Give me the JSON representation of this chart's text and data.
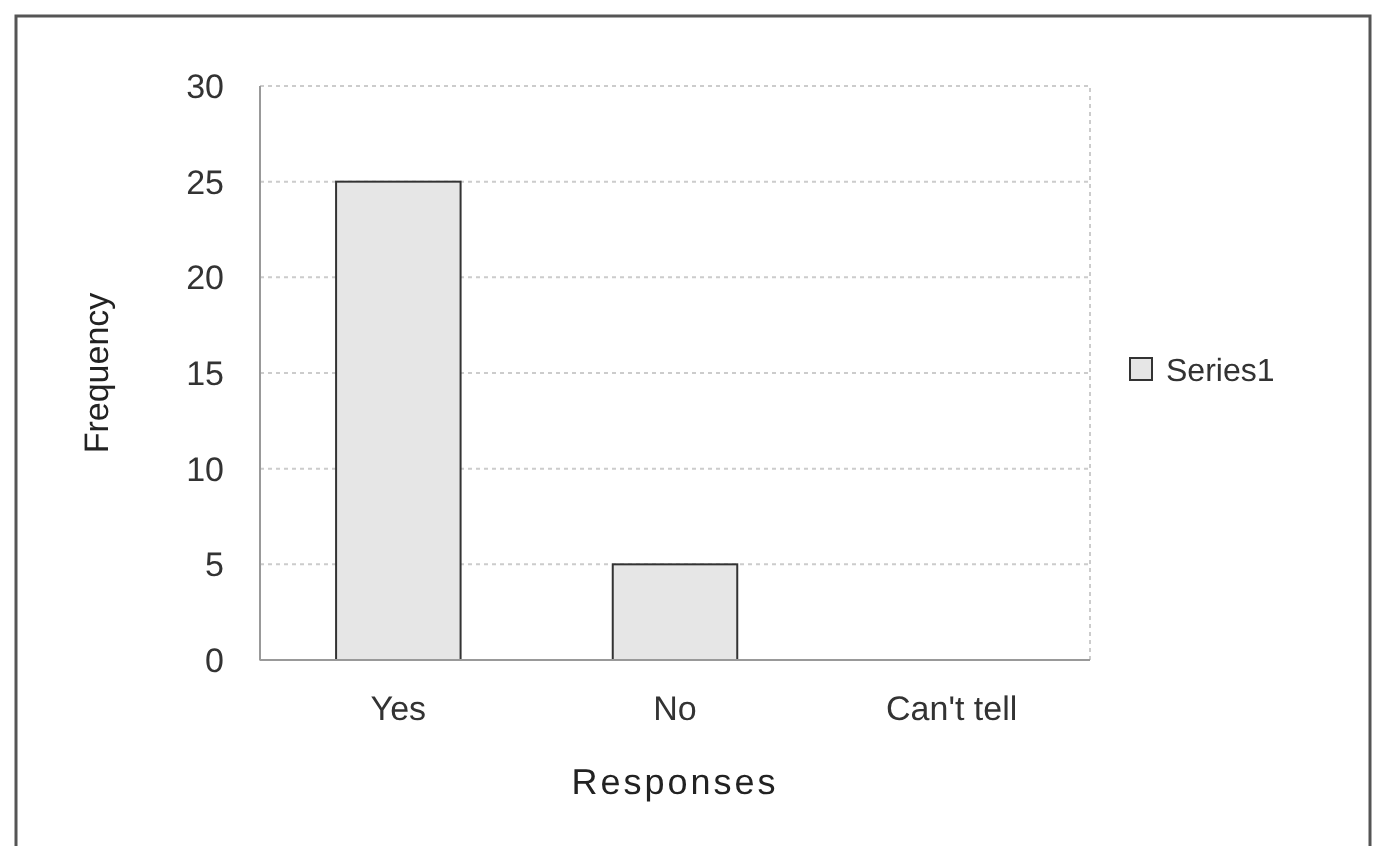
{
  "chart_data": {
    "type": "bar",
    "xlabel": "Responses",
    "ylabel": "Frequency",
    "categories": [
      "Yes",
      "No",
      "Can't tell"
    ],
    "series": [
      {
        "name": "Series1",
        "color": "#e6e6e6",
        "values": [
          25,
          5,
          0
        ]
      }
    ],
    "ylim": [
      0,
      30
    ],
    "yticks": [
      0,
      5,
      10,
      15,
      20,
      25,
      30
    ],
    "grid": "y",
    "legend": "right"
  }
}
